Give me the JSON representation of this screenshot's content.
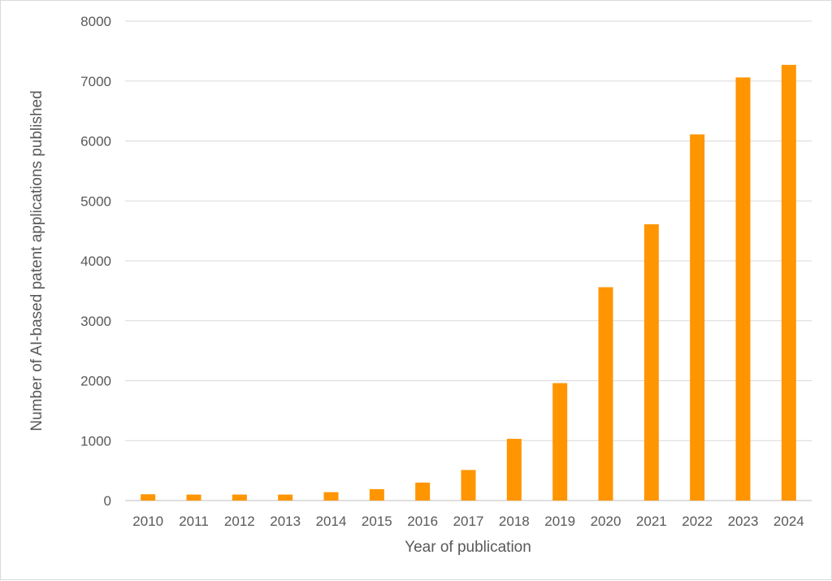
{
  "chart_data": {
    "type": "bar",
    "title": "",
    "xlabel": "Year of publication",
    "ylabel": "Number of AI-based patent applications published",
    "categories": [
      "2010",
      "2011",
      "2012",
      "2013",
      "2014",
      "2015",
      "2016",
      "2017",
      "2018",
      "2019",
      "2020",
      "2021",
      "2022",
      "2023",
      "2024"
    ],
    "series": [
      {
        "values": [
          105,
          100,
          100,
          100,
          140,
          190,
          300,
          510,
          1030,
          1960,
          3560,
          4610,
          6110,
          7060,
          7270
        ],
        "color": "#ff9500"
      }
    ],
    "ylim": [
      0,
      8000
    ],
    "yticks": [
      0,
      1000,
      2000,
      3000,
      4000,
      5000,
      6000,
      7000,
      8000
    ],
    "grid": true,
    "legend": "none"
  }
}
